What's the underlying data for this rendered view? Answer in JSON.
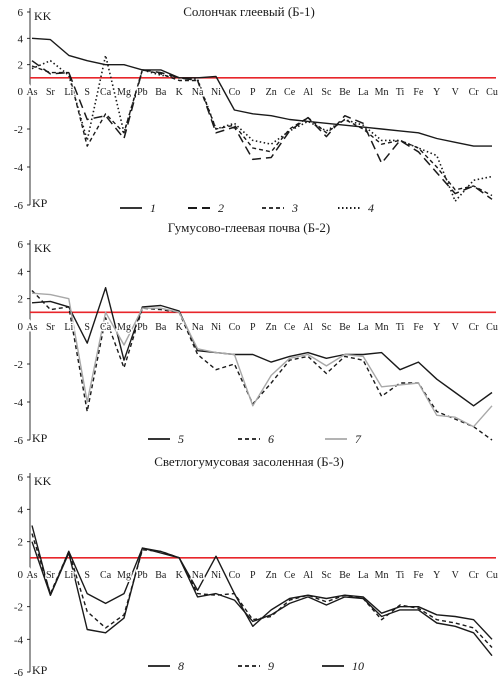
{
  "chart_data": [
    {
      "type": "line",
      "title": "Солончак глеевый (Б-1)",
      "ylabel_top": "KK",
      "ylabel_bottom": "KP",
      "ylim": [
        -6,
        6
      ],
      "yticks": [
        -6,
        -4,
        -2,
        0,
        2,
        4,
        6
      ],
      "reference_line": {
        "y": 1,
        "color": "#e8262b"
      },
      "categories": [
        "As",
        "Sr",
        "Li",
        "S",
        "Ca",
        "Mg",
        "Pb",
        "Ba",
        "K",
        "Na",
        "Ni",
        "Co",
        "P",
        "Zn",
        "Ce",
        "Al",
        "Sc",
        "Be",
        "La",
        "Mn",
        "Ti",
        "Fe",
        "Y",
        "V",
        "Cr",
        "Cu"
      ],
      "series": [
        {
          "name": "1",
          "style": "solid",
          "values": [
            4.0,
            3.9,
            2.7,
            2.3,
            2.0,
            2.0,
            1.6,
            1.6,
            1.0,
            1.0,
            1.1,
            -1.0,
            -1.2,
            -1.3,
            -1.5,
            -1.6,
            -1.7,
            -1.8,
            -1.9,
            -2.0,
            -2.1,
            -2.2,
            -2.5,
            -2.7,
            -2.9,
            -2.9
          ]
        },
        {
          "name": "2",
          "style": "longdash",
          "values": [
            2.3,
            1.3,
            1.4,
            -1.5,
            -1.3,
            -2.5,
            1.6,
            1.4,
            1.0,
            0.8,
            -2.2,
            -1.9,
            -3.6,
            -3.5,
            -2.1,
            -1.4,
            -2.4,
            -1.3,
            -1.7,
            -3.8,
            -2.6,
            -3.2,
            -4.3,
            -5.4,
            -5.0,
            -5.7
          ]
        },
        {
          "name": "3",
          "style": "shortdash",
          "values": [
            1.9,
            1.4,
            1.4,
            -2.9,
            -1.2,
            -2.2,
            1.6,
            1.3,
            0.8,
            0.8,
            -2.0,
            -1.8,
            -3.0,
            -3.2,
            -2.0,
            -1.4,
            -2.2,
            -1.5,
            -2.0,
            -2.8,
            -2.6,
            -3.0,
            -4.0,
            -5.2,
            -5.0,
            -5.5
          ]
        },
        {
          "name": "4",
          "style": "dotted",
          "values": [
            1.7,
            2.3,
            1.2,
            -2.6,
            2.7,
            -2.2,
            1.6,
            1.2,
            1.0,
            0.9,
            -2.0,
            -1.7,
            -2.6,
            -2.8,
            -2.1,
            -1.6,
            -2.1,
            -1.5,
            -1.8,
            -2.6,
            -2.6,
            -3.0,
            -3.4,
            -5.8,
            -4.7,
            -4.5
          ]
        }
      ]
    },
    {
      "type": "line",
      "title": "Гумусово-глеевая почва (Б-2)",
      "ylabel_top": "KK",
      "ylabel_bottom": "KP",
      "ylim": [
        -6,
        6
      ],
      "yticks": [
        -6,
        -4,
        -2,
        0,
        2,
        4,
        6
      ],
      "reference_line": {
        "y": 1,
        "color": "#e8262b"
      },
      "categories": [
        "As",
        "Sr",
        "Li",
        "S",
        "Ca",
        "Mg",
        "Pb",
        "Ba",
        "K",
        "Na",
        "Ni",
        "Co",
        "P",
        "Zn",
        "Ce",
        "Al",
        "Sc",
        "Be",
        "La",
        "Mn",
        "Ti",
        "Fe",
        "Y",
        "V",
        "Cr",
        "Cu"
      ],
      "series": [
        {
          "name": "5",
          "style": "solid",
          "values": [
            1.7,
            1.8,
            1.4,
            -0.9,
            2.8,
            -1.8,
            1.4,
            1.5,
            1.1,
            -1.3,
            -1.4,
            -1.5,
            -1.5,
            -1.9,
            -1.6,
            -1.4,
            -1.7,
            -1.5,
            -1.5,
            -1.4,
            -2.3,
            -1.9,
            -2.8,
            -3.5,
            -4.2,
            -3.5
          ]
        },
        {
          "name": "6",
          "style": "shortdash",
          "values": [
            2.6,
            1.2,
            1.4,
            -4.5,
            0.6,
            -2.2,
            1.3,
            1.2,
            1.0,
            -1.5,
            -2.3,
            -2.0,
            -4.1,
            -3.0,
            -1.8,
            -1.6,
            -2.5,
            -1.6,
            -1.8,
            -3.7,
            -3.0,
            -3.0,
            -4.5,
            -4.9,
            -5.3,
            -6.0
          ]
        },
        {
          "name": "7",
          "style": "gray",
          "values": [
            2.4,
            2.3,
            2.0,
            -4.0,
            1.0,
            -1.0,
            1.3,
            1.3,
            1.0,
            -1.2,
            -1.4,
            -1.5,
            -4.2,
            -2.6,
            -1.7,
            -1.5,
            -2.1,
            -1.5,
            -1.6,
            -3.2,
            -3.1,
            -3.0,
            -4.7,
            -4.8,
            -5.3,
            -4.2
          ]
        }
      ]
    },
    {
      "type": "line",
      "title": "Светлогумусовая засоленная (Б-3)",
      "ylabel_top": "KK",
      "ylabel_bottom": "KP",
      "ylim": [
        -6,
        6
      ],
      "yticks": [
        -6,
        -4,
        -2,
        0,
        2,
        4,
        6
      ],
      "reference_line": {
        "y": 1,
        "color": "#e8262b"
      },
      "categories": [
        "As",
        "Sr",
        "Li",
        "S",
        "Ca",
        "Mg",
        "Pb",
        "Ba",
        "K",
        "Na",
        "Ni",
        "Co",
        "P",
        "Zn",
        "Ce",
        "Al",
        "Sc",
        "Be",
        "La",
        "Mn",
        "Ti",
        "Fe",
        "Y",
        "V",
        "Cr",
        "Cu"
      ],
      "series": [
        {
          "name": "8",
          "style": "solid",
          "values": [
            3.0,
            -1.3,
            1.4,
            -1.2,
            -1.8,
            -1.2,
            1.6,
            1.3,
            1.0,
            -1.0,
            1.1,
            -1.2,
            -3.2,
            -2.2,
            -1.5,
            -1.3,
            -1.5,
            -1.3,
            -1.4,
            -2.4,
            -2.0,
            -2.0,
            -2.5,
            -2.6,
            -2.8,
            -4.0
          ]
        },
        {
          "name": "9",
          "style": "shortdash",
          "values": [
            2.5,
            -1.2,
            1.4,
            -2.3,
            -3.3,
            -2.5,
            1.5,
            1.4,
            1.0,
            -1.2,
            -1.3,
            -1.2,
            -2.8,
            -2.6,
            -1.6,
            -1.3,
            -1.7,
            -1.3,
            -1.5,
            -2.8,
            -1.9,
            -2.1,
            -2.8,
            -3.0,
            -3.3,
            -4.5
          ]
        },
        {
          "name": "10",
          "style": "solid",
          "values": [
            2.0,
            -1.3,
            1.3,
            -3.4,
            -3.6,
            -2.7,
            1.6,
            1.4,
            1.0,
            -1.4,
            -1.2,
            -1.6,
            -2.9,
            -2.5,
            -1.8,
            -1.4,
            -1.9,
            -1.4,
            -1.5,
            -2.6,
            -2.2,
            -2.2,
            -3.0,
            -3.2,
            -3.6,
            -5.0
          ]
        }
      ]
    }
  ]
}
